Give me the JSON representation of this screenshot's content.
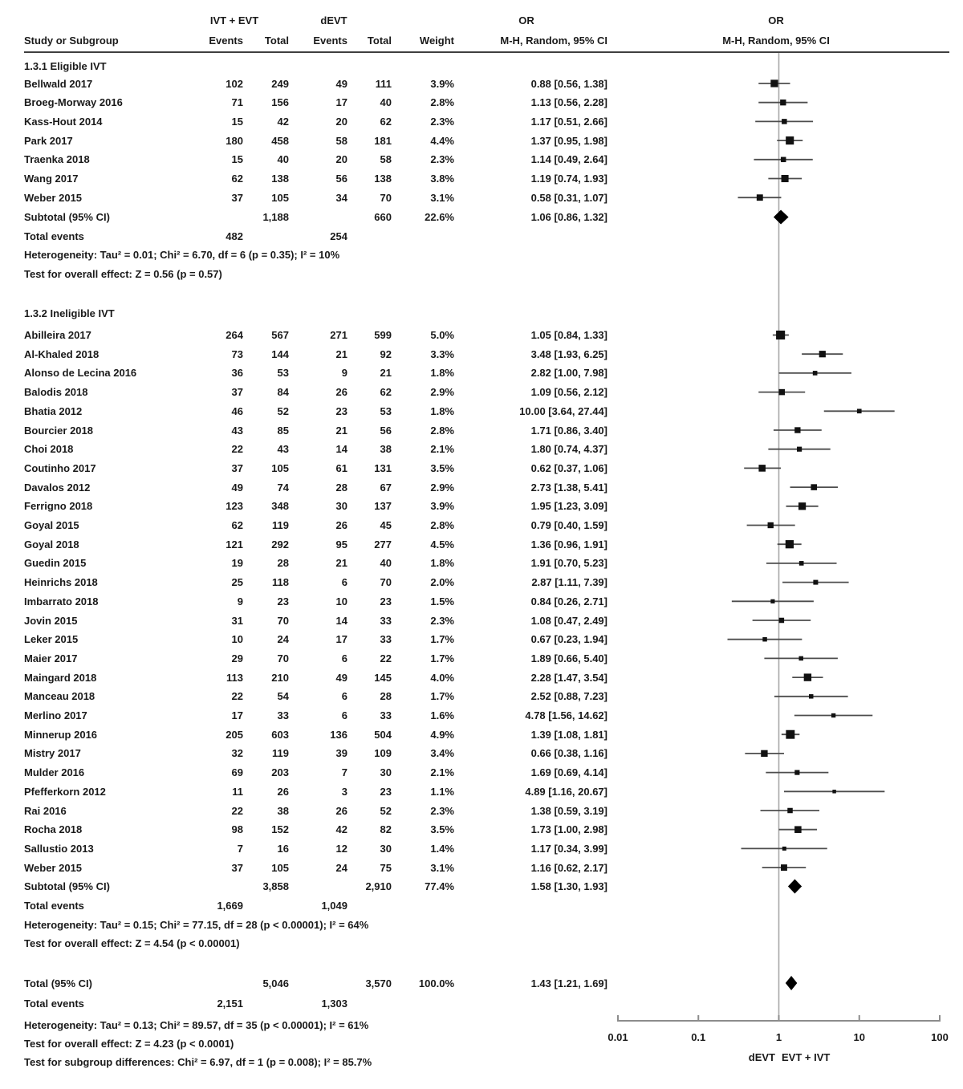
{
  "chart_data": {
    "type": "forest",
    "columns": {
      "study": "Study or Subgroup",
      "group1": "IVT + EVT",
      "group2": "dEVT",
      "events": "Events",
      "total": "Total",
      "weight": "Weight",
      "or_col": "OR",
      "method": "M-H, Random, 95% CI"
    },
    "axis": {
      "scale": "log10",
      "ticks": [
        "0.01",
        "0.1",
        "1",
        "10",
        "100"
      ],
      "tick_values": [
        0.01,
        0.1,
        1,
        10,
        100
      ],
      "label_left": "dEVT",
      "label_right": "EVT + IVT"
    },
    "groups": [
      {
        "name": "1.3.1 Eligible IVT",
        "studies": [
          {
            "label": "Bellwald 2017",
            "e1": "102",
            "t1": "249",
            "e2": "49",
            "t2": "111",
            "w": "3.9%",
            "or": 0.88,
            "lo": 0.56,
            "hi": 1.38,
            "ci": "0.88 [0.56, 1.38]"
          },
          {
            "label": "Broeg-Morway 2016",
            "e1": "71",
            "t1": "156",
            "e2": "17",
            "t2": "40",
            "w": "2.8%",
            "or": 1.13,
            "lo": 0.56,
            "hi": 2.28,
            "ci": "1.13 [0.56, 2.28]"
          },
          {
            "label": "Kass-Hout 2014",
            "e1": "15",
            "t1": "42",
            "e2": "20",
            "t2": "62",
            "w": "2.3%",
            "or": 1.17,
            "lo": 0.51,
            "hi": 2.66,
            "ci": "1.17 [0.51, 2.66]"
          },
          {
            "label": "Park 2017",
            "e1": "180",
            "t1": "458",
            "e2": "58",
            "t2": "181",
            "w": "4.4%",
            "or": 1.37,
            "lo": 0.95,
            "hi": 1.98,
            "ci": "1.37 [0.95, 1.98]"
          },
          {
            "label": "Traenka 2018",
            "e1": "15",
            "t1": "40",
            "e2": "20",
            "t2": "58",
            "w": "2.3%",
            "or": 1.14,
            "lo": 0.49,
            "hi": 2.64,
            "ci": "1.14 [0.49, 2.64]"
          },
          {
            "label": "Wang 2017",
            "e1": "62",
            "t1": "138",
            "e2": "56",
            "t2": "138",
            "w": "3.8%",
            "or": 1.19,
            "lo": 0.74,
            "hi": 1.93,
            "ci": "1.19 [0.74, 1.93]"
          },
          {
            "label": "Weber 2015",
            "e1": "37",
            "t1": "105",
            "e2": "34",
            "t2": "70",
            "w": "3.1%",
            "or": 0.58,
            "lo": 0.31,
            "hi": 1.07,
            "ci": "0.58 [0.31, 1.07]"
          }
        ],
        "subtotal": {
          "label": "Subtotal (95% CI)",
          "t1": "1,188",
          "t2": "660",
          "w": "22.6%",
          "or": 1.06,
          "lo": 0.86,
          "hi": 1.32,
          "ci": "1.06 [0.86, 1.32]"
        },
        "total_events": {
          "label": "Total events",
          "e1": "482",
          "e2": "254"
        },
        "heterogeneity": "Heterogeneity: Tau² = 0.01; Chi² = 6.70, df = 6 (p = 0.35); I² = 10%",
        "overall_effect": "Test for overall effect: Z = 0.56 (p = 0.57)"
      },
      {
        "name": "1.3.2 Ineligible IVT",
        "studies": [
          {
            "label": "Abilleira 2017",
            "e1": "264",
            "t1": "567",
            "e2": "271",
            "t2": "599",
            "w": "5.0%",
            "or": 1.05,
            "lo": 0.84,
            "hi": 1.33,
            "ci": "1.05 [0.84, 1.33]"
          },
          {
            "label": "Al-Khaled 2018",
            "e1": "73",
            "t1": "144",
            "e2": "21",
            "t2": "92",
            "w": "3.3%",
            "or": 3.48,
            "lo": 1.93,
            "hi": 6.25,
            "ci": "3.48 [1.93, 6.25]"
          },
          {
            "label": "Alonso de Lecina 2016",
            "e1": "36",
            "t1": "53",
            "e2": "9",
            "t2": "21",
            "w": "1.8%",
            "or": 2.82,
            "lo": 1.0,
            "hi": 7.98,
            "ci": "2.82 [1.00, 7.98]"
          },
          {
            "label": "Balodis 2018",
            "e1": "37",
            "t1": "84",
            "e2": "26",
            "t2": "62",
            "w": "2.9%",
            "or": 1.09,
            "lo": 0.56,
            "hi": 2.12,
            "ci": "1.09 [0.56, 2.12]"
          },
          {
            "label": "Bhatia 2012",
            "e1": "46",
            "t1": "52",
            "e2": "23",
            "t2": "53",
            "w": "1.8%",
            "or": 10.0,
            "lo": 3.64,
            "hi": 27.44,
            "ci": "10.00 [3.64, 27.44]"
          },
          {
            "label": "Bourcier 2018",
            "e1": "43",
            "t1": "85",
            "e2": "21",
            "t2": "56",
            "w": "2.8%",
            "or": 1.71,
            "lo": 0.86,
            "hi": 3.4,
            "ci": "1.71 [0.86, 3.40]"
          },
          {
            "label": "Choi 2018",
            "e1": "22",
            "t1": "43",
            "e2": "14",
            "t2": "38",
            "w": "2.1%",
            "or": 1.8,
            "lo": 0.74,
            "hi": 4.37,
            "ci": "1.80 [0.74, 4.37]"
          },
          {
            "label": "Coutinho 2017",
            "e1": "37",
            "t1": "105",
            "e2": "61",
            "t2": "131",
            "w": "3.5%",
            "or": 0.62,
            "lo": 0.37,
            "hi": 1.06,
            "ci": "0.62 [0.37, 1.06]"
          },
          {
            "label": "Davalos 2012",
            "e1": "49",
            "t1": "74",
            "e2": "28",
            "t2": "67",
            "w": "2.9%",
            "or": 2.73,
            "lo": 1.38,
            "hi": 5.41,
            "ci": "2.73 [1.38, 5.41]"
          },
          {
            "label": "Ferrigno 2018",
            "e1": "123",
            "t1": "348",
            "e2": "30",
            "t2": "137",
            "w": "3.9%",
            "or": 1.95,
            "lo": 1.23,
            "hi": 3.09,
            "ci": "1.95 [1.23, 3.09]"
          },
          {
            "label": "Goyal 2015",
            "e1": "62",
            "t1": "119",
            "e2": "26",
            "t2": "45",
            "w": "2.8%",
            "or": 0.79,
            "lo": 0.4,
            "hi": 1.59,
            "ci": "0.79 [0.40, 1.59]"
          },
          {
            "label": "Goyal 2018",
            "e1": "121",
            "t1": "292",
            "e2": "95",
            "t2": "277",
            "w": "4.5%",
            "or": 1.36,
            "lo": 0.96,
            "hi": 1.91,
            "ci": "1.36 [0.96, 1.91]"
          },
          {
            "label": "Guedin 2015",
            "e1": "19",
            "t1": "28",
            "e2": "21",
            "t2": "40",
            "w": "1.8%",
            "or": 1.91,
            "lo": 0.7,
            "hi": 5.23,
            "ci": "1.91 [0.70, 5.23]"
          },
          {
            "label": "Heinrichs 2018",
            "e1": "25",
            "t1": "118",
            "e2": "6",
            "t2": "70",
            "w": "2.0%",
            "or": 2.87,
            "lo": 1.11,
            "hi": 7.39,
            "ci": "2.87 [1.11, 7.39]"
          },
          {
            "label": "Imbarrato 2018",
            "e1": "9",
            "t1": "23",
            "e2": "10",
            "t2": "23",
            "w": "1.5%",
            "or": 0.84,
            "lo": 0.26,
            "hi": 2.71,
            "ci": "0.84 [0.26, 2.71]"
          },
          {
            "label": "Jovin 2015",
            "e1": "31",
            "t1": "70",
            "e2": "14",
            "t2": "33",
            "w": "2.3%",
            "or": 1.08,
            "lo": 0.47,
            "hi": 2.49,
            "ci": "1.08 [0.47, 2.49]"
          },
          {
            "label": "Leker 2015",
            "e1": "10",
            "t1": "24",
            "e2": "17",
            "t2": "33",
            "w": "1.7%",
            "or": 0.67,
            "lo": 0.23,
            "hi": 1.94,
            "ci": "0.67 [0.23, 1.94]"
          },
          {
            "label": "Maier 2017",
            "e1": "29",
            "t1": "70",
            "e2": "6",
            "t2": "22",
            "w": "1.7%",
            "or": 1.89,
            "lo": 0.66,
            "hi": 5.4,
            "ci": "1.89 [0.66, 5.40]"
          },
          {
            "label": "Maingard 2018",
            "e1": "113",
            "t1": "210",
            "e2": "49",
            "t2": "145",
            "w": "4.0%",
            "or": 2.28,
            "lo": 1.47,
            "hi": 3.54,
            "ci": "2.28 [1.47, 3.54]"
          },
          {
            "label": "Manceau 2018",
            "e1": "22",
            "t1": "54",
            "e2": "6",
            "t2": "28",
            "w": "1.7%",
            "or": 2.52,
            "lo": 0.88,
            "hi": 7.23,
            "ci": "2.52 [0.88, 7.23]"
          },
          {
            "label": "Merlino 2017",
            "e1": "17",
            "t1": "33",
            "e2": "6",
            "t2": "33",
            "w": "1.6%",
            "or": 4.78,
            "lo": 1.56,
            "hi": 14.62,
            "ci": "4.78 [1.56, 14.62]"
          },
          {
            "label": "Minnerup 2016",
            "e1": "205",
            "t1": "603",
            "e2": "136",
            "t2": "504",
            "w": "4.9%",
            "or": 1.39,
            "lo": 1.08,
            "hi": 1.81,
            "ci": "1.39 [1.08, 1.81]"
          },
          {
            "label": "Mistry 2017",
            "e1": "32",
            "t1": "119",
            "e2": "39",
            "t2": "109",
            "w": "3.4%",
            "or": 0.66,
            "lo": 0.38,
            "hi": 1.16,
            "ci": "0.66 [0.38, 1.16]"
          },
          {
            "label": "Mulder 2016",
            "e1": "69",
            "t1": "203",
            "e2": "7",
            "t2": "30",
            "w": "2.1%",
            "or": 1.69,
            "lo": 0.69,
            "hi": 4.14,
            "ci": "1.69 [0.69, 4.14]"
          },
          {
            "label": "Pfefferkorn 2012",
            "e1": "11",
            "t1": "26",
            "e2": "3",
            "t2": "23",
            "w": "1.1%",
            "or": 4.89,
            "lo": 1.16,
            "hi": 20.67,
            "ci": "4.89 [1.16, 20.67]"
          },
          {
            "label": "Rai 2016",
            "e1": "22",
            "t1": "38",
            "e2": "26",
            "t2": "52",
            "w": "2.3%",
            "or": 1.38,
            "lo": 0.59,
            "hi": 3.19,
            "ci": "1.38 [0.59, 3.19]"
          },
          {
            "label": "Rocha 2018",
            "e1": "98",
            "t1": "152",
            "e2": "42",
            "t2": "82",
            "w": "3.5%",
            "or": 1.73,
            "lo": 1.0,
            "hi": 2.98,
            "ci": "1.73 [1.00, 2.98]"
          },
          {
            "label": "Sallustio 2013",
            "e1": "7",
            "t1": "16",
            "e2": "12",
            "t2": "30",
            "w": "1.4%",
            "or": 1.17,
            "lo": 0.34,
            "hi": 3.99,
            "ci": "1.17 [0.34, 3.99]"
          },
          {
            "label": "Weber 2015",
            "e1": "37",
            "t1": "105",
            "e2": "24",
            "t2": "75",
            "w": "3.1%",
            "or": 1.16,
            "lo": 0.62,
            "hi": 2.17,
            "ci": "1.16 [0.62, 2.17]"
          }
        ],
        "subtotal": {
          "label": "Subtotal (95% CI)",
          "t1": "3,858",
          "t2": "2,910",
          "w": "77.4%",
          "or": 1.58,
          "lo": 1.3,
          "hi": 1.93,
          "ci": "1.58 [1.30, 1.93]"
        },
        "total_events": {
          "label": "Total events",
          "e1": "1,669",
          "e2": "1,049"
        },
        "heterogeneity": "Heterogeneity: Tau² = 0.15; Chi² = 77.15, df = 28 (p < 0.00001); I² = 64%",
        "overall_effect": "Test for overall effect: Z = 4.54 (p < 0.00001)"
      }
    ],
    "total": {
      "label": "Total (95% CI)",
      "t1": "5,046",
      "t2": "3,570",
      "w": "100.0%",
      "or": 1.43,
      "lo": 1.21,
      "hi": 1.69,
      "ci": "1.43 [1.21, 1.69]",
      "total_events": {
        "label": "Total events",
        "e1": "2,151",
        "e2": "1,303"
      },
      "heterogeneity": "Heterogeneity: Tau² = 0.13; Chi² = 89.57, df = 35 (p < 0.00001); I² = 61%",
      "overall_effect": "Test for overall effect: Z = 4.23 (p < 0.0001)",
      "subgroup_diff": "Test for subgroup differences: Chi² = 6.97, df = 1 (p = 0.008); I² = 85.7%"
    },
    "colors": {
      "text": "#1a1a1a",
      "ci_line": "#4d4d4d",
      "square": "#111111",
      "diamond": "#000000",
      "center_line": "#a8a8a8",
      "axis": "#8c8c8c"
    }
  }
}
